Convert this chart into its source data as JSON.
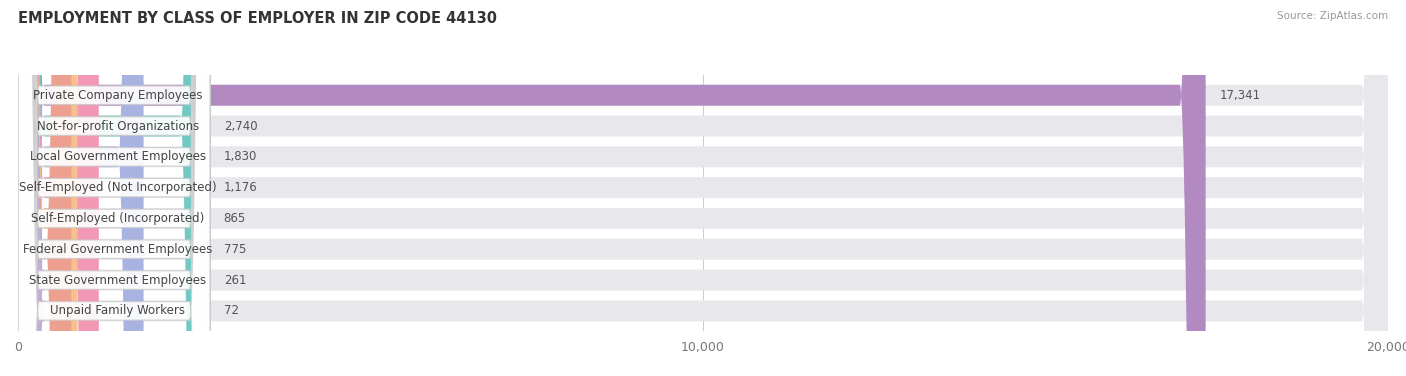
{
  "title": "EMPLOYMENT BY CLASS OF EMPLOYER IN ZIP CODE 44130",
  "source": "Source: ZipAtlas.com",
  "categories": [
    "Private Company Employees",
    "Not-for-profit Organizations",
    "Local Government Employees",
    "Self-Employed (Not Incorporated)",
    "Self-Employed (Incorporated)",
    "Federal Government Employees",
    "State Government Employees",
    "Unpaid Family Workers"
  ],
  "values": [
    17341,
    2740,
    1830,
    1176,
    865,
    775,
    261,
    72
  ],
  "bar_colors": [
    "#b389c2",
    "#72c9c4",
    "#a9b3e2",
    "#f298b4",
    "#f6c18a",
    "#eda090",
    "#9bbdd8",
    "#c4aed4"
  ],
  "xlim": [
    0,
    20000
  ],
  "xticks": [
    0,
    10000,
    20000
  ],
  "xtick_labels": [
    "0",
    "10,000",
    "20,000"
  ],
  "bg_color": "#ffffff",
  "row_bg_color": "#eeeeee",
  "title_fontsize": 10.5,
  "label_fontsize": 8.5,
  "value_fontsize": 8.5
}
